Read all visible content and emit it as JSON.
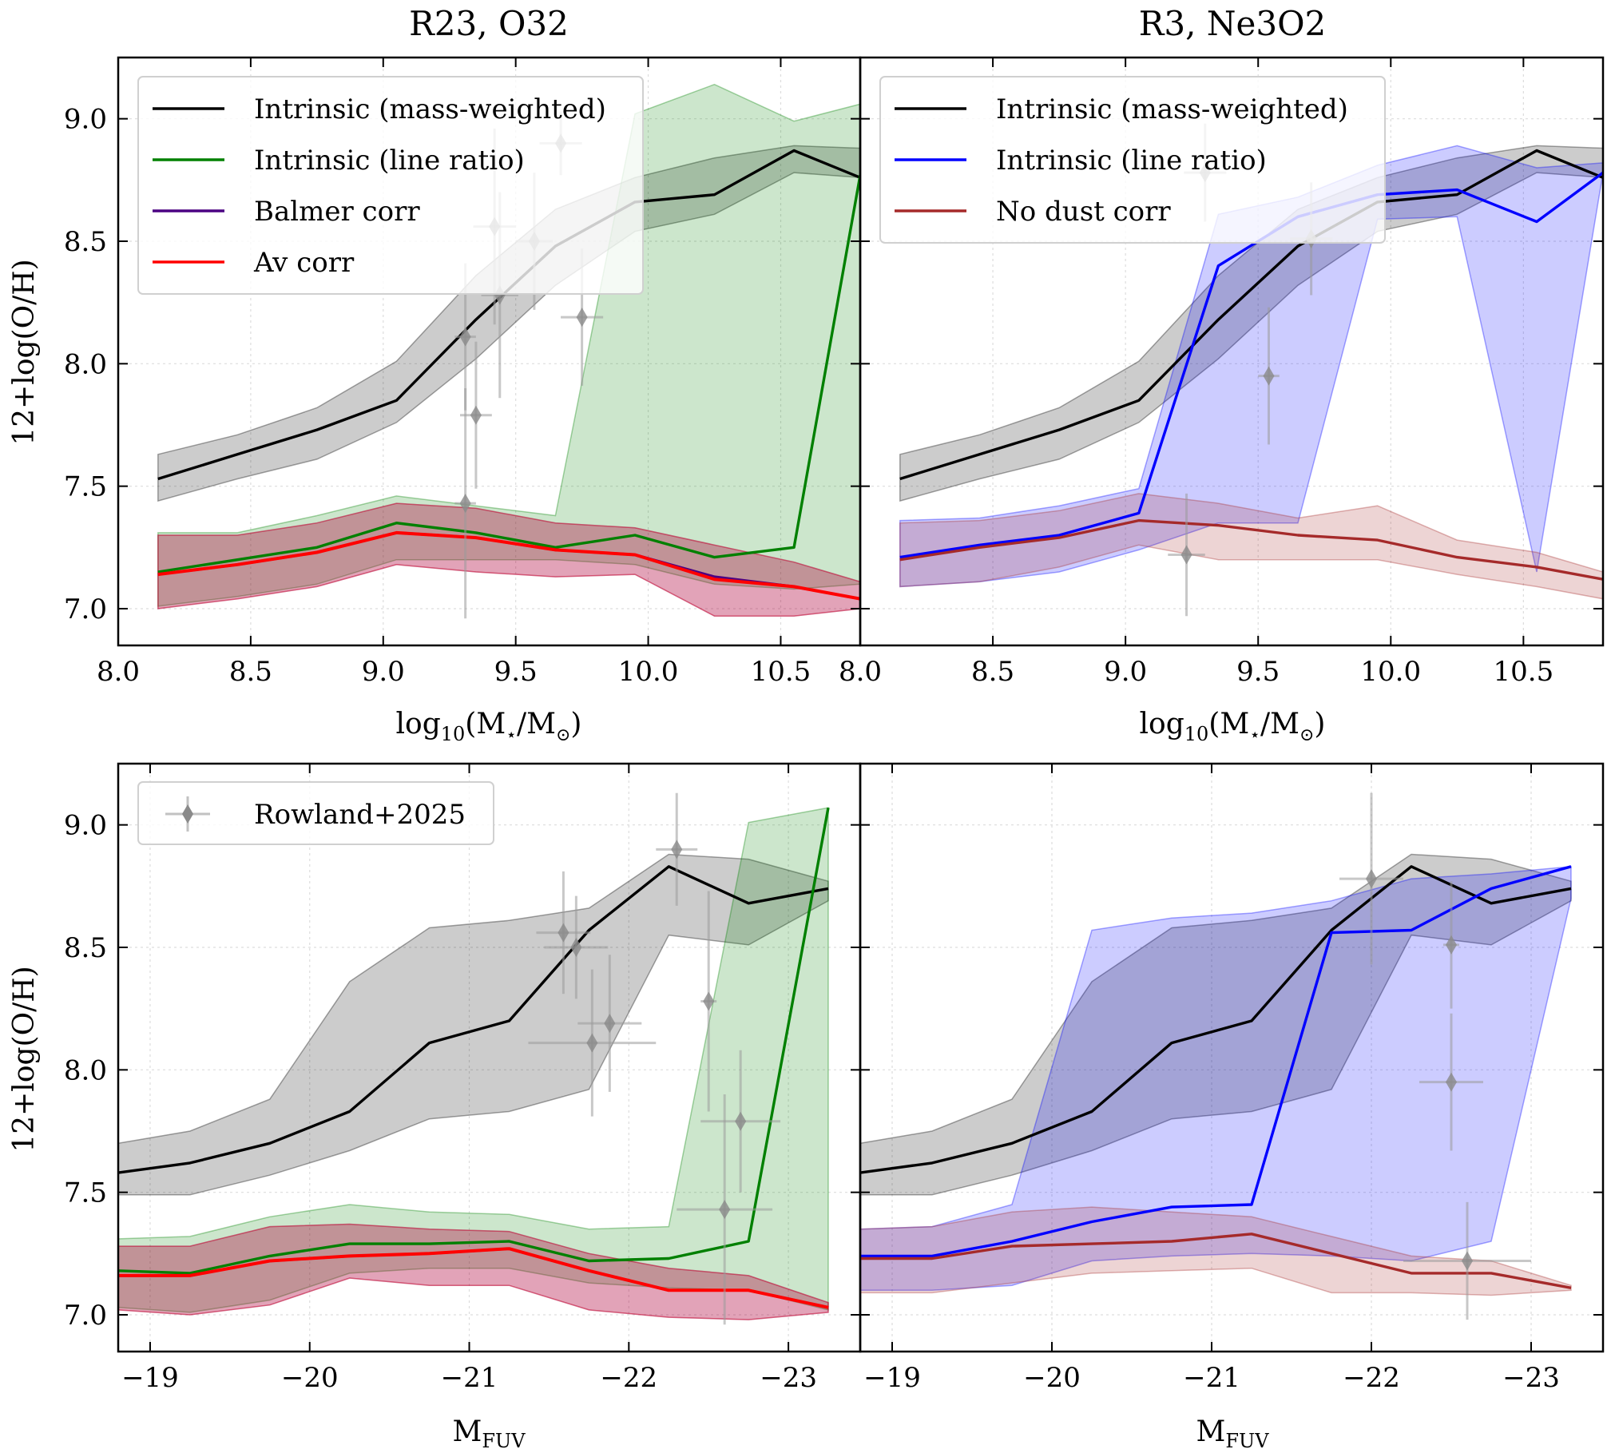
{
  "figure": {
    "col_titles": [
      "R23, O32",
      "R3, Ne3O2"
    ],
    "ylabel": "12+log(O/H)",
    "xlabel_mass_prefix": "log",
    "xlabel_mass_sub": "10",
    "xlabel_mass_rest": "(M",
    "xlabel_mass_star": "⋆",
    "xlabel_mass_slash": "/M",
    "xlabel_mass_sun": "⊙",
    "xlabel_mass_close": ")",
    "xlabel_fuv_main": "M",
    "xlabel_fuv_sub": "FUV"
  },
  "colors": {
    "mass_weighted": "#000000",
    "line_ratio_left": "#008000",
    "line_ratio_right": "#0000ff",
    "balmer": "#4b0082",
    "av": "#ff0000",
    "no_dust": "#a52a2a",
    "obs": "#9a9a9a"
  },
  "chart_data": [
    {
      "type": "line",
      "panel": "top-left",
      "title": "R23, O32",
      "xlabel": "log10(M⋆/M⊙)",
      "ylabel": "12+log(O/H)",
      "xlim": [
        8.0,
        10.8
      ],
      "ylim": [
        6.85,
        9.25
      ],
      "xticks": [
        "8.0",
        "8.5",
        "9.0",
        "9.5",
        "10.0",
        "10.5"
      ],
      "yticks": [
        "7.0",
        "7.5",
        "8.0",
        "8.5",
        "9.0"
      ],
      "grid": true,
      "legend": {
        "position": "upper-left",
        "entries": [
          "Intrinsic (mass-weighted)",
          "Intrinsic (line ratio)",
          "Balmer corr",
          "Av corr"
        ]
      },
      "x": [
        8.15,
        8.45,
        8.75,
        9.05,
        9.35,
        9.65,
        9.95,
        10.25,
        10.55,
        10.8
      ],
      "series": [
        {
          "name": "Intrinsic (mass-weighted)",
          "key": "mass_weighted",
          "values": [
            7.53,
            7.63,
            7.73,
            7.85,
            8.18,
            8.48,
            8.66,
            8.69,
            8.87,
            8.76
          ],
          "lower": [
            7.44,
            7.53,
            7.61,
            7.76,
            8.02,
            8.32,
            8.54,
            8.61,
            8.78,
            8.76
          ],
          "upper": [
            7.63,
            7.71,
            7.82,
            8.01,
            8.36,
            8.63,
            8.76,
            8.84,
            8.89,
            8.88
          ]
        },
        {
          "name": "Intrinsic (line ratio)",
          "key": "line_ratio_left",
          "values": [
            7.15,
            7.2,
            7.25,
            7.35,
            7.31,
            7.25,
            7.3,
            7.21,
            7.25,
            8.77
          ],
          "lower": [
            7.01,
            7.05,
            7.1,
            7.2,
            7.2,
            7.2,
            7.18,
            7.1,
            7.08,
            7.1
          ],
          "upper": [
            7.31,
            7.31,
            7.38,
            7.46,
            7.42,
            7.38,
            9.02,
            9.14,
            8.99,
            9.06
          ]
        },
        {
          "name": "Balmer corr",
          "key": "balmer",
          "values": [
            7.14,
            7.18,
            7.23,
            7.31,
            7.29,
            7.24,
            7.22,
            7.13,
            7.09,
            7.04
          ],
          "lower": [
            7.0,
            7.04,
            7.09,
            7.18,
            7.15,
            7.13,
            7.14,
            6.97,
            6.97,
            7.0
          ],
          "upper": [
            7.3,
            7.3,
            7.35,
            7.43,
            7.41,
            7.35,
            7.33,
            7.26,
            7.19,
            7.11
          ]
        },
        {
          "name": "Av corr",
          "key": "av",
          "values": [
            7.14,
            7.18,
            7.23,
            7.31,
            7.29,
            7.24,
            7.22,
            7.12,
            7.09,
            7.04
          ],
          "lower": [
            7.0,
            7.04,
            7.09,
            7.18,
            7.15,
            7.13,
            7.14,
            6.97,
            6.97,
            7.0
          ],
          "upper": [
            7.3,
            7.3,
            7.35,
            7.43,
            7.41,
            7.35,
            7.33,
            7.26,
            7.19,
            7.11
          ]
        }
      ],
      "observations": [
        {
          "x": 9.31,
          "y": 8.11,
          "xerr": 0.04,
          "yerr": 0.3
        },
        {
          "x": 9.35,
          "y": 7.79,
          "xerr": 0.06,
          "yerr": 0.3
        },
        {
          "x": 9.31,
          "y": 7.43,
          "xerr": 0.04,
          "yerr": 0.47
        },
        {
          "x": 9.44,
          "y": 8.28,
          "xerr": 0.07,
          "yerr": 0.42
        },
        {
          "x": 9.42,
          "y": 8.56,
          "xerr": 0.08,
          "yerr": 0.4
        },
        {
          "x": 9.57,
          "y": 8.5,
          "xerr": 0.07,
          "yerr": 0.28
        },
        {
          "x": 9.67,
          "y": 8.9,
          "xerr": 0.08,
          "yerr": 0.13
        },
        {
          "x": 9.75,
          "y": 8.19,
          "xerr": 0.08,
          "yerr": 0.28
        }
      ]
    },
    {
      "type": "line",
      "panel": "top-right",
      "title": "R3, Ne3O2",
      "xlabel": "log10(M⋆/M⊙)",
      "ylabel": "",
      "xlim": [
        8.0,
        10.8
      ],
      "ylim": [
        6.85,
        9.25
      ],
      "xticks": [
        "8.0",
        "8.5",
        "9.0",
        "9.5",
        "10.0",
        "10.5"
      ],
      "yticks": [
        "7.0",
        "7.5",
        "8.0",
        "8.5",
        "9.0"
      ],
      "grid": true,
      "legend": {
        "position": "upper-left",
        "entries": [
          "Intrinsic (mass-weighted)",
          "Intrinsic (line ratio)",
          "No dust corr"
        ]
      },
      "x": [
        8.15,
        8.45,
        8.75,
        9.05,
        9.35,
        9.65,
        9.95,
        10.25,
        10.55,
        10.8
      ],
      "series": [
        {
          "name": "Intrinsic (mass-weighted)",
          "key": "mass_weighted",
          "values": [
            7.53,
            7.63,
            7.73,
            7.85,
            8.18,
            8.48,
            8.66,
            8.69,
            8.87,
            8.76
          ],
          "lower": [
            7.44,
            7.53,
            7.61,
            7.76,
            8.02,
            8.32,
            8.54,
            8.61,
            8.78,
            8.76
          ],
          "upper": [
            7.63,
            7.71,
            7.82,
            8.01,
            8.36,
            8.63,
            8.76,
            8.84,
            8.89,
            8.88
          ]
        },
        {
          "name": "Intrinsic (line ratio)",
          "key": "line_ratio_right",
          "values": [
            7.21,
            7.26,
            7.3,
            7.39,
            8.4,
            8.6,
            8.69,
            8.71,
            8.58,
            8.78
          ],
          "lower": [
            7.09,
            7.11,
            7.15,
            7.24,
            7.35,
            7.35,
            8.59,
            8.6,
            7.15,
            8.78
          ],
          "upper": [
            7.36,
            7.37,
            7.42,
            7.49,
            8.61,
            8.68,
            8.81,
            8.89,
            8.8,
            8.82
          ]
        },
        {
          "name": "No dust corr",
          "key": "no_dust",
          "values": [
            7.2,
            7.25,
            7.29,
            7.36,
            7.34,
            7.3,
            7.28,
            7.21,
            7.17,
            7.12
          ],
          "lower": [
            7.09,
            7.11,
            7.17,
            7.26,
            7.2,
            7.2,
            7.2,
            7.14,
            7.09,
            7.04
          ],
          "upper": [
            7.35,
            7.36,
            7.4,
            7.47,
            7.43,
            7.37,
            7.42,
            7.28,
            7.23,
            7.15
          ]
        }
      ],
      "observations": [
        {
          "x": 9.23,
          "y": 7.22,
          "xerr": 0.07,
          "yerr": 0.25
        },
        {
          "x": 9.3,
          "y": 8.78,
          "xerr": 0.08,
          "yerr": 0.2
        },
        {
          "x": 9.54,
          "y": 7.95,
          "xerr": 0.04,
          "yerr": 0.28
        },
        {
          "x": 9.7,
          "y": 8.51,
          "xerr": 0.08,
          "yerr": 0.23
        }
      ]
    },
    {
      "type": "line",
      "panel": "bottom-left",
      "title": "",
      "xlabel": "M_FUV",
      "ylabel": "12+log(O/H)",
      "xlim": [
        -18.8,
        -23.45
      ],
      "ylim": [
        6.85,
        9.25
      ],
      "xticks": [
        "−19",
        "−20",
        "−21",
        "−22",
        "−23"
      ],
      "yticks": [
        "7.0",
        "7.5",
        "8.0",
        "8.5",
        "9.0"
      ],
      "grid": true,
      "legend": {
        "position": "upper-left",
        "entries": [
          "Rowland+2025"
        ]
      },
      "x": [
        -18.8,
        -19.25,
        -19.75,
        -20.25,
        -20.75,
        -21.25,
        -21.75,
        -22.25,
        -22.75,
        -23.25
      ],
      "series": [
        {
          "name": "Intrinsic (mass-weighted)",
          "key": "mass_weighted",
          "values": [
            7.58,
            7.62,
            7.7,
            7.83,
            8.11,
            8.2,
            8.57,
            8.83,
            8.68,
            8.74
          ],
          "lower": [
            7.49,
            7.49,
            7.57,
            7.67,
            7.8,
            7.83,
            7.92,
            8.55,
            8.51,
            8.69
          ],
          "upper": [
            7.7,
            7.75,
            7.88,
            8.36,
            8.58,
            8.61,
            8.66,
            8.88,
            8.86,
            8.77
          ]
        },
        {
          "name": "Intrinsic (line ratio)",
          "key": "line_ratio_left",
          "values": [
            7.18,
            7.17,
            7.24,
            7.29,
            7.29,
            7.3,
            7.22,
            7.23,
            7.3,
            9.07
          ],
          "lower": [
            7.03,
            7.01,
            7.06,
            7.17,
            7.19,
            7.19,
            7.13,
            7.11,
            7.1,
            7.02
          ],
          "upper": [
            7.31,
            7.32,
            7.4,
            7.45,
            7.42,
            7.41,
            7.35,
            7.36,
            9.01,
            9.07
          ]
        },
        {
          "name": "Balmer corr",
          "key": "balmer",
          "values": [
            7.16,
            7.16,
            7.22,
            7.24,
            7.25,
            7.27,
            7.18,
            7.1,
            7.1,
            7.03
          ],
          "lower": [
            7.02,
            7.0,
            7.04,
            7.15,
            7.12,
            7.12,
            7.02,
            6.99,
            6.98,
            7.01
          ],
          "upper": [
            7.28,
            7.28,
            7.36,
            7.37,
            7.35,
            7.34,
            7.25,
            7.19,
            7.16,
            7.05
          ]
        },
        {
          "name": "Av corr",
          "key": "av",
          "values": [
            7.16,
            7.16,
            7.22,
            7.24,
            7.25,
            7.27,
            7.18,
            7.1,
            7.1,
            7.03
          ],
          "lower": [
            7.02,
            7.0,
            7.04,
            7.15,
            7.12,
            7.12,
            7.02,
            6.99,
            6.98,
            7.01
          ],
          "upper": [
            7.28,
            7.28,
            7.36,
            7.37,
            7.35,
            7.34,
            7.25,
            7.19,
            7.16,
            7.05
          ]
        }
      ],
      "observations": [
        {
          "x": -21.59,
          "y": 8.56,
          "xerr": 0.17,
          "yerr": 0.25
        },
        {
          "x": -21.67,
          "y": 8.5,
          "xerr": 0.2,
          "yerr": 0.21
        },
        {
          "x": -21.77,
          "y": 8.11,
          "xerr": 0.4,
          "yerr": 0.3
        },
        {
          "x": -21.88,
          "y": 8.19,
          "xerr": 0.2,
          "yerr": 0.28
        },
        {
          "x": -22.3,
          "y": 8.9,
          "xerr": 0.13,
          "yerr": 0.23
        },
        {
          "x": -22.5,
          "y": 8.28,
          "xerr": 0.05,
          "yerr": 0.45
        },
        {
          "x": -22.6,
          "y": 7.43,
          "xerr": 0.3,
          "yerr": 0.47
        },
        {
          "x": -22.7,
          "y": 7.79,
          "xerr": 0.25,
          "yerr": 0.29
        }
      ]
    },
    {
      "type": "line",
      "panel": "bottom-right",
      "title": "",
      "xlabel": "M_FUV",
      "ylabel": "",
      "xlim": [
        -18.8,
        -23.45
      ],
      "ylim": [
        6.85,
        9.25
      ],
      "xticks": [
        "−19",
        "−20",
        "−21",
        "−22",
        "−23"
      ],
      "yticks": [
        "7.0",
        "7.5",
        "8.0",
        "8.5",
        "9.0"
      ],
      "grid": true,
      "legend": null,
      "x": [
        -18.8,
        -19.25,
        -19.75,
        -20.25,
        -20.75,
        -21.25,
        -21.75,
        -22.25,
        -22.75,
        -23.25
      ],
      "series": [
        {
          "name": "Intrinsic (mass-weighted)",
          "key": "mass_weighted",
          "values": [
            7.58,
            7.62,
            7.7,
            7.83,
            8.11,
            8.2,
            8.57,
            8.83,
            8.68,
            8.74
          ],
          "lower": [
            7.49,
            7.49,
            7.57,
            7.67,
            7.8,
            7.83,
            7.92,
            8.55,
            8.51,
            8.69
          ],
          "upper": [
            7.7,
            7.75,
            7.88,
            8.36,
            8.58,
            8.61,
            8.66,
            8.88,
            8.86,
            8.77
          ]
        },
        {
          "name": "Intrinsic (line ratio)",
          "key": "line_ratio_right",
          "values": [
            7.24,
            7.24,
            7.3,
            7.38,
            7.44,
            7.45,
            8.56,
            8.57,
            8.74,
            8.83
          ],
          "lower": [
            7.1,
            7.1,
            7.12,
            7.22,
            7.24,
            7.25,
            7.24,
            7.22,
            7.3,
            8.7
          ],
          "upper": [
            7.35,
            7.36,
            7.45,
            8.57,
            8.62,
            8.64,
            8.69,
            8.78,
            8.8,
            8.83
          ]
        },
        {
          "name": "No dust corr",
          "key": "no_dust",
          "values": [
            7.23,
            7.23,
            7.28,
            7.29,
            7.3,
            7.33,
            7.25,
            7.17,
            7.17,
            7.11
          ],
          "lower": [
            7.09,
            7.09,
            7.13,
            7.17,
            7.18,
            7.19,
            7.09,
            7.09,
            7.08,
            7.1
          ],
          "upper": [
            7.35,
            7.36,
            7.42,
            7.44,
            7.42,
            7.4,
            7.32,
            7.24,
            7.22,
            7.12
          ]
        }
      ],
      "observations": [
        {
          "x": -22.0,
          "y": 8.78,
          "xerr": 0.2,
          "yerr": 0.35
        },
        {
          "x": -22.5,
          "y": 8.51,
          "xerr": 0.05,
          "yerr": 0.26
        },
        {
          "x": -22.5,
          "y": 7.95,
          "xerr": 0.2,
          "yerr": 0.28
        },
        {
          "x": -22.6,
          "y": 7.22,
          "xerr": 0.4,
          "yerr": 0.24
        }
      ]
    }
  ]
}
